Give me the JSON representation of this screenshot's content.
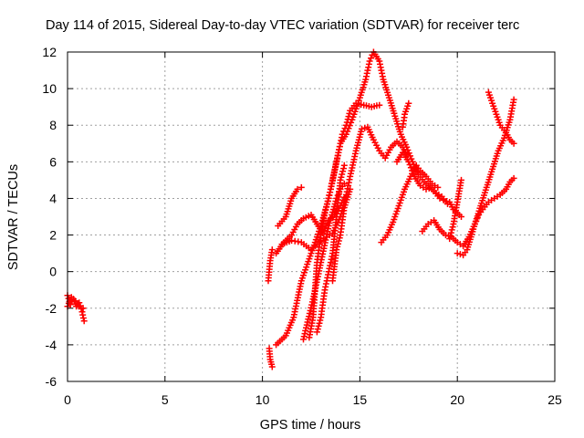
{
  "chart_data": {
    "type": "scatter",
    "title": "Day 114 of 2015, Sidereal Day-to-day VTEC variation (SDTVAR) for receiver terc",
    "xlabel": "GPS time / hours",
    "ylabel": "SDTVAR / TECUs",
    "xlim": [
      0,
      25
    ],
    "ylim": [
      -6,
      12
    ],
    "xticks": [
      0,
      5,
      10,
      15,
      20,
      25
    ],
    "yticks": [
      -6,
      -4,
      -2,
      0,
      2,
      4,
      6,
      8,
      10,
      12
    ],
    "grid": true,
    "marker": "+",
    "color": "#ff0000",
    "series": [
      {
        "values": [
          [
            0.0,
            -1.3
          ],
          [
            0.15,
            -1.8
          ],
          [
            0.3,
            -1.5
          ],
          [
            0.45,
            -1.9
          ],
          [
            0.6,
            -1.7
          ],
          [
            0.75,
            -2.2
          ],
          [
            0.85,
            -2.7
          ]
        ]
      },
      {
        "values": [
          [
            0.0,
            -1.9
          ],
          [
            0.2,
            -1.4
          ],
          [
            0.4,
            -1.6
          ],
          [
            0.6,
            -1.9
          ],
          [
            0.8,
            -2.0
          ]
        ]
      },
      {
        "values": [
          [
            10.3,
            -0.5
          ],
          [
            10.4,
            0.6
          ],
          [
            10.5,
            1.2
          ]
        ]
      },
      {
        "values": [
          [
            10.35,
            -4.2
          ],
          [
            10.4,
            -4.8
          ],
          [
            10.5,
            -5.2
          ]
        ]
      },
      {
        "values": [
          [
            10.7,
            -4.0
          ],
          [
            11.2,
            -3.5
          ],
          [
            11.6,
            -2.5
          ],
          [
            12.0,
            -0.5
          ],
          [
            12.5,
            1.0
          ],
          [
            13.0,
            2.5
          ],
          [
            13.4,
            4.0
          ],
          [
            13.6,
            5.0
          ],
          [
            13.9,
            6.5
          ],
          [
            14.1,
            7.5
          ],
          [
            14.3,
            8.0
          ],
          [
            14.5,
            8.8
          ],
          [
            14.8,
            9.2
          ],
          [
            15.2,
            9.1
          ],
          [
            15.6,
            9.0
          ],
          [
            16.0,
            9.1
          ]
        ]
      },
      {
        "values": [
          [
            10.7,
            1.0
          ],
          [
            11.1,
            1.6
          ],
          [
            11.5,
            2.0
          ],
          [
            11.8,
            2.6
          ],
          [
            12.1,
            2.9
          ],
          [
            12.5,
            3.1
          ],
          [
            12.8,
            2.6
          ],
          [
            13.1,
            2.1
          ],
          [
            13.4,
            2.8
          ],
          [
            13.7,
            3.1
          ],
          [
            14.0,
            3.6
          ],
          [
            14.3,
            4.2
          ],
          [
            14.5,
            5.2
          ],
          [
            14.8,
            6.6
          ],
          [
            15.1,
            7.8
          ],
          [
            15.4,
            7.9
          ],
          [
            15.7,
            7.2
          ],
          [
            16.0,
            6.6
          ],
          [
            16.3,
            6.2
          ],
          [
            16.6,
            6.8
          ],
          [
            16.9,
            7.1
          ],
          [
            17.2,
            6.8
          ],
          [
            17.4,
            6.4
          ]
        ]
      },
      {
        "values": [
          [
            10.8,
            2.5
          ],
          [
            11.2,
            3.0
          ],
          [
            11.5,
            4.0
          ],
          [
            11.8,
            4.5
          ],
          [
            12.0,
            4.6
          ]
        ]
      },
      {
        "values": [
          [
            11.0,
            1.5
          ],
          [
            11.5,
            1.7
          ],
          [
            12.0,
            1.6
          ],
          [
            12.5,
            1.2
          ],
          [
            13.0,
            1.7
          ],
          [
            13.3,
            1.9
          ],
          [
            13.6,
            2.1
          ],
          [
            14.0,
            3.0
          ],
          [
            14.3,
            4.1
          ]
        ]
      },
      {
        "values": [
          [
            12.4,
            -3.6
          ],
          [
            12.6,
            -2.5
          ],
          [
            12.8,
            0.5
          ],
          [
            13.0,
            2.0
          ],
          [
            13.2,
            3.2
          ],
          [
            13.5,
            4.5
          ],
          [
            13.8,
            6.0
          ],
          [
            14.0,
            7.0
          ],
          [
            14.3,
            7.5
          ],
          [
            14.6,
            8.3
          ],
          [
            15.0,
            9.5
          ],
          [
            15.3,
            10.5
          ],
          [
            15.5,
            11.5
          ],
          [
            15.7,
            12.0
          ],
          [
            16.0,
            11.5
          ],
          [
            16.2,
            10.5
          ],
          [
            16.5,
            9.5
          ],
          [
            16.8,
            8.5
          ],
          [
            17.1,
            7.5
          ],
          [
            17.4,
            6.8
          ],
          [
            17.7,
            6.0
          ],
          [
            18.0,
            5.3
          ],
          [
            18.3,
            4.9
          ],
          [
            18.6,
            4.6
          ],
          [
            18.9,
            4.3
          ],
          [
            19.2,
            4.1
          ],
          [
            19.5,
            3.7
          ]
        ]
      },
      {
        "values": [
          [
            12.1,
            -3.7
          ],
          [
            12.6,
            -1.5
          ],
          [
            13.0,
            0.5
          ],
          [
            13.4,
            2.5
          ],
          [
            13.8,
            4.0
          ],
          [
            14.0,
            4.5
          ],
          [
            14.2,
            4.8
          ]
        ]
      },
      {
        "values": [
          [
            12.8,
            -3.3
          ],
          [
            13.0,
            -2.5
          ],
          [
            13.2,
            -1.0
          ],
          [
            13.4,
            0.0
          ],
          [
            13.6,
            1.0
          ],
          [
            13.8,
            3.0
          ],
          [
            14.0,
            5.0
          ],
          [
            14.2,
            5.8
          ]
        ]
      },
      {
        "values": [
          [
            13.6,
            -0.5
          ],
          [
            13.8,
            1.2
          ],
          [
            14.0,
            2.0
          ],
          [
            14.2,
            3.5
          ],
          [
            14.5,
            4.5
          ]
        ]
      },
      {
        "values": [
          [
            16.1,
            1.6
          ],
          [
            16.4,
            2.0
          ],
          [
            16.7,
            2.7
          ],
          [
            17.0,
            3.6
          ],
          [
            17.3,
            4.5
          ],
          [
            17.6,
            5.2
          ],
          [
            17.9,
            5.8
          ],
          [
            18.1,
            5.5
          ],
          [
            18.4,
            5.2
          ],
          [
            18.7,
            4.8
          ],
          [
            19.0,
            4.6
          ]
        ]
      },
      {
        "values": [
          [
            16.9,
            6.0
          ],
          [
            17.2,
            6.5
          ],
          [
            17.5,
            6.0
          ],
          [
            17.8,
            5.2
          ],
          [
            18.1,
            4.7
          ],
          [
            18.4,
            4.5
          ],
          [
            18.7,
            4.6
          ],
          [
            18.8,
            4.4
          ],
          [
            19.1,
            4.0
          ],
          [
            19.3,
            3.9
          ],
          [
            19.6,
            3.8
          ],
          [
            19.8,
            3.4
          ],
          [
            20.0,
            3.2
          ],
          [
            20.2,
            3.0
          ]
        ]
      },
      {
        "values": [
          [
            17.2,
            7.9
          ],
          [
            17.3,
            8.6
          ],
          [
            17.5,
            9.2
          ]
        ]
      },
      {
        "values": [
          [
            18.2,
            2.2
          ],
          [
            18.5,
            2.6
          ],
          [
            18.8,
            2.8
          ],
          [
            19.1,
            2.3
          ],
          [
            19.4,
            2.0
          ],
          [
            19.7,
            1.9
          ],
          [
            20.0,
            1.6
          ],
          [
            20.3,
            1.4
          ],
          [
            20.6,
            1.9
          ],
          [
            20.9,
            2.6
          ],
          [
            21.2,
            3.6
          ],
          [
            21.5,
            4.6
          ],
          [
            21.8,
            5.6
          ],
          [
            22.1,
            6.6
          ],
          [
            22.4,
            7.3
          ],
          [
            22.7,
            8.3
          ],
          [
            22.9,
            9.4
          ]
        ]
      },
      {
        "values": [
          [
            19.6,
            1.8
          ],
          [
            19.8,
            2.6
          ],
          [
            20.0,
            3.8
          ],
          [
            20.2,
            5.0
          ]
        ]
      },
      {
        "values": [
          [
            20.0,
            1.0
          ],
          [
            20.3,
            0.9
          ],
          [
            20.5,
            1.2
          ],
          [
            20.7,
            1.9
          ],
          [
            20.9,
            2.6
          ],
          [
            21.1,
            3.1
          ],
          [
            21.3,
            3.4
          ],
          [
            21.6,
            3.8
          ],
          [
            21.9,
            4.0
          ],
          [
            22.2,
            4.2
          ],
          [
            22.5,
            4.5
          ],
          [
            22.7,
            4.9
          ],
          [
            22.9,
            5.1
          ]
        ]
      },
      {
        "values": [
          [
            21.6,
            9.8
          ],
          [
            21.8,
            9.2
          ],
          [
            22.0,
            8.6
          ],
          [
            22.2,
            8.0
          ],
          [
            22.5,
            7.6
          ],
          [
            22.7,
            7.2
          ],
          [
            22.9,
            7.0
          ]
        ]
      }
    ]
  }
}
